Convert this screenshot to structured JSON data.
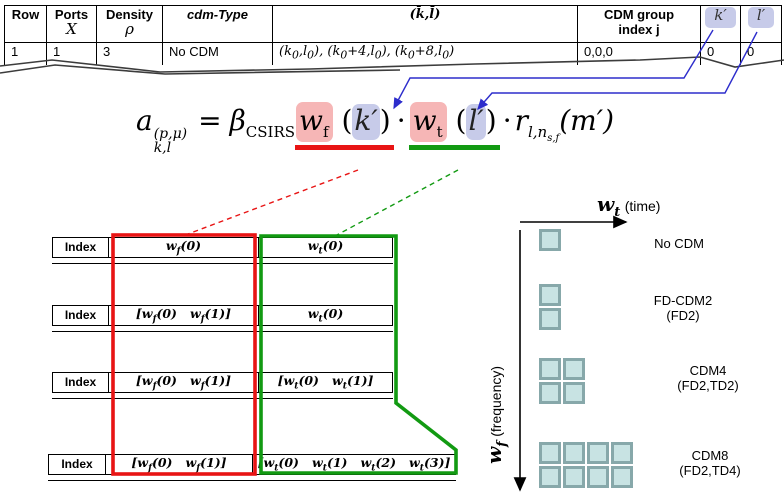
{
  "colors": {
    "red": "#e81414",
    "green": "#129a12",
    "blue": "#2d2dcc",
    "pink_highlight": "#f6b6b6",
    "lavender_highlight": "#c7cbe9",
    "square_fill": "#c8e3e3",
    "square_border": "#87a8aa"
  },
  "top_table": {
    "headers": {
      "row": "Row",
      "ports_l1": "Ports",
      "ports_l2": "X",
      "density_l1": "Density",
      "density_l2": "ρ",
      "cdm_type": "cdm-Type",
      "kl_bar": "(k̄,l̄)",
      "cdm_group_l1": "CDM group",
      "cdm_group_l2": "index j",
      "k_prime": "k′",
      "l_prime": "l′"
    },
    "row1": {
      "row": "1",
      "ports": "1",
      "density": "3",
      "cdm_type": "No CDM",
      "kl_values": "(k_0,l_0), (k_0+4,l_0), (k_0+8,l_0)",
      "cdm_group_index": "0,0,0",
      "k_prime": "0",
      "l_prime": "0"
    }
  },
  "formula": {
    "a": "a",
    "a_sup": "(p,μ)",
    "a_sub": "k,l",
    "eq": "=",
    "beta": "β",
    "beta_sub": "CSIRS",
    "w1": "w",
    "w1_sub": "f",
    "arg1_open": "(",
    "arg1": "k′",
    "arg1_close": ")",
    "dot1": "·",
    "w2": "w",
    "w2_sub": "t",
    "arg2_open": "(",
    "arg2": "l′",
    "arg2_close": ")",
    "dot2": "·",
    "r": "r",
    "r_sub1": "l,n",
    "r_sub2": "s,f",
    "m": "(m′)"
  },
  "mini_tables": [
    {
      "index": "Index",
      "wf": "w_f(0)",
      "wt": "w_t(0)"
    },
    {
      "index": "Index",
      "wf": "[w_f(0)   w_f(1)]",
      "wt": "w_t(0)"
    },
    {
      "index": "Index",
      "wf": "[w_f(0)   w_f(1)]",
      "wt": "[w_t(0)   w_t(1)]"
    },
    {
      "index": "Index",
      "wf": "[w_f(0)   w_f(1)]",
      "wt": "[w_t(0)   w_t(1)   w_t(2)   w_t(3)]"
    }
  ],
  "axes": {
    "x_sym": "w",
    "x_sub": "t",
    "x_unit": "(time)",
    "y_sym": "w",
    "y_sub": "f",
    "y_unit": "(frequency)"
  },
  "legend": {
    "items": [
      {
        "label": "No CDM",
        "sub": "",
        "rows": 1,
        "cols": 1
      },
      {
        "label": "FD-CDM2",
        "sub": "(FD2)",
        "rows": 2,
        "cols": 1
      },
      {
        "label": "CDM4",
        "sub": "(FD2,TD2)",
        "rows": 2,
        "cols": 2
      },
      {
        "label": "CDM8",
        "sub": "(FD2,TD4)",
        "rows": 2,
        "cols": 4
      }
    ]
  }
}
